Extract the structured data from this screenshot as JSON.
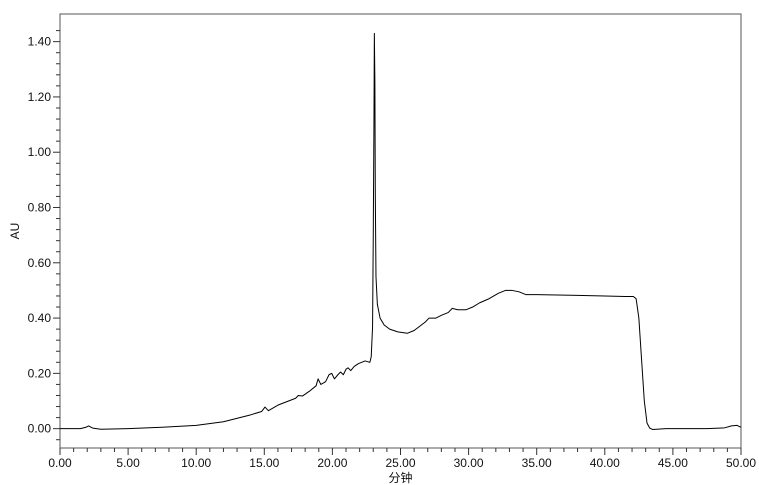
{
  "chart_data": {
    "type": "line",
    "title": "",
    "xlabel": "分钟",
    "ylabel": "AU",
    "xlim": [
      0,
      50
    ],
    "ylim": [
      -0.07,
      1.5
    ],
    "grid": false,
    "legend": "none",
    "x_ticks": [
      "0.00",
      "5.00",
      "10.00",
      "15.00",
      "20.00",
      "25.00",
      "30.00",
      "35.00",
      "40.00",
      "45.00",
      "50.00"
    ],
    "y_ticks": [
      "0.00",
      "0.20",
      "0.40",
      "0.60",
      "0.80",
      "1.00",
      "1.20",
      "1.40"
    ],
    "series": [
      {
        "color": "#000000",
        "x": [
          0,
          1.5,
          1.9,
          2.1,
          2.4,
          3,
          5,
          7.5,
          10,
          12,
          14,
          14.8,
          15.05,
          15.3,
          16,
          17.3,
          17.5,
          17.8,
          18.3,
          18.8,
          18.95,
          19.15,
          19.5,
          19.75,
          19.95,
          20.15,
          20.4,
          20.6,
          20.8,
          21.0,
          21.15,
          21.35,
          21.6,
          21.9,
          22.4,
          22.75,
          22.85,
          22.95,
          23.0,
          23.05,
          23.08,
          23.12,
          23.15,
          23.2,
          23.3,
          23.5,
          23.8,
          24.2,
          24.8,
          25.5,
          26.0,
          26.4,
          26.8,
          27.1,
          27.6,
          28.0,
          28.5,
          28.8,
          29.2,
          29.8,
          30.3,
          30.8,
          31.5,
          32.2,
          32.7,
          33.2,
          33.7,
          34.2,
          35.0,
          36.0,
          38.0,
          40.0,
          41.5,
          42.1,
          42.3,
          42.5,
          42.7,
          42.9,
          43.1,
          43.3,
          43.5,
          43.8,
          44.5,
          46.0,
          47.5,
          48.8,
          49.3,
          49.7,
          50.0
        ],
        "values": [
          0.0,
          0.0,
          0.005,
          0.01,
          0.002,
          -0.002,
          0.0,
          0.005,
          0.012,
          0.025,
          0.05,
          0.062,
          0.078,
          0.065,
          0.085,
          0.11,
          0.12,
          0.118,
          0.135,
          0.155,
          0.18,
          0.16,
          0.17,
          0.195,
          0.2,
          0.18,
          0.195,
          0.205,
          0.195,
          0.215,
          0.22,
          0.21,
          0.225,
          0.235,
          0.245,
          0.24,
          0.26,
          0.37,
          0.7,
          1.1,
          1.43,
          1.25,
          0.85,
          0.55,
          0.45,
          0.4,
          0.375,
          0.36,
          0.35,
          0.345,
          0.355,
          0.37,
          0.385,
          0.4,
          0.4,
          0.41,
          0.42,
          0.435,
          0.43,
          0.43,
          0.44,
          0.455,
          0.47,
          0.49,
          0.5,
          0.5,
          0.495,
          0.485,
          0.485,
          0.484,
          0.482,
          0.48,
          0.478,
          0.478,
          0.47,
          0.4,
          0.25,
          0.1,
          0.02,
          0.002,
          -0.003,
          -0.002,
          0.0,
          0.0,
          0.0,
          0.003,
          0.01,
          0.012,
          0.005
        ]
      }
    ]
  }
}
